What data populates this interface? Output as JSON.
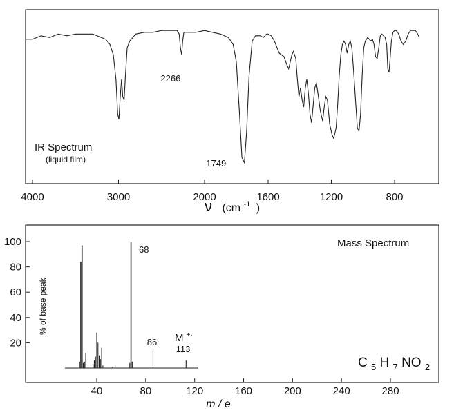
{
  "chart_data": [
    {
      "type": "line",
      "title": "IR Spectrum",
      "subtitle": "(liquid film)",
      "xlabel_symbol": "ν",
      "xlabel_unit": "(cm",
      "xlabel_exp": "-1",
      "xlabel_close": ")",
      "xlim": [
        4100,
        640
      ],
      "x_ticks": [
        4000,
        3000,
        2000,
        1600,
        1200,
        800
      ],
      "x_tick_labels": [
        "4000",
        "3000",
        "2000",
        "1600",
        "1200",
        "800"
      ],
      "grid": false,
      "annotations": [
        {
          "x": 2266,
          "label": "2266"
        },
        {
          "x": 1749,
          "label": "1749"
        }
      ],
      "series": [
        {
          "units": "relative transmittance (0 = bottom of frame, 1 = top)",
          "points": [
            [
              4100,
              0.83
            ],
            [
              4000,
              0.83
            ],
            [
              3900,
              0.85
            ],
            [
              3800,
              0.84
            ],
            [
              3700,
              0.86
            ],
            [
              3600,
              0.85
            ],
            [
              3500,
              0.86
            ],
            [
              3400,
              0.86
            ],
            [
              3300,
              0.86
            ],
            [
              3200,
              0.84
            ],
            [
              3150,
              0.83
            ],
            [
              3100,
              0.8
            ],
            [
              3060,
              0.74
            ],
            [
              3030,
              0.6
            ],
            [
              3010,
              0.4
            ],
            [
              2995,
              0.37
            ],
            [
              2980,
              0.5
            ],
            [
              2965,
              0.6
            ],
            [
              2950,
              0.5
            ],
            [
              2935,
              0.48
            ],
            [
              2920,
              0.62
            ],
            [
              2900,
              0.78
            ],
            [
              2870,
              0.82
            ],
            [
              2800,
              0.86
            ],
            [
              2700,
              0.87
            ],
            [
              2600,
              0.87
            ],
            [
              2500,
              0.88
            ],
            [
              2400,
              0.88
            ],
            [
              2320,
              0.88
            ],
            [
              2295,
              0.86
            ],
            [
              2280,
              0.78
            ],
            [
              2266,
              0.74
            ],
            [
              2255,
              0.82
            ],
            [
              2240,
              0.87
            ],
            [
              2100,
              0.87
            ],
            [
              2000,
              0.88
            ],
            [
              1950,
              0.87
            ],
            [
              1900,
              0.86
            ],
            [
              1850,
              0.84
            ],
            [
              1820,
              0.8
            ],
            [
              1800,
              0.7
            ],
            [
              1780,
              0.4
            ],
            [
              1765,
              0.15
            ],
            [
              1749,
              0.12
            ],
            [
              1735,
              0.3
            ],
            [
              1720,
              0.62
            ],
            [
              1700,
              0.82
            ],
            [
              1680,
              0.85
            ],
            [
              1650,
              0.85
            ],
            [
              1630,
              0.84
            ],
            [
              1610,
              0.86
            ],
            [
              1600,
              0.86
            ],
            [
              1580,
              0.85
            ],
            [
              1560,
              0.82
            ],
            [
              1530,
              0.75
            ],
            [
              1500,
              0.73
            ],
            [
              1480,
              0.68
            ],
            [
              1470,
              0.66
            ],
            [
              1460,
              0.7
            ],
            [
              1450,
              0.74
            ],
            [
              1440,
              0.76
            ],
            [
              1425,
              0.72
            ],
            [
              1415,
              0.6
            ],
            [
              1405,
              0.5
            ],
            [
              1395,
              0.55
            ],
            [
              1385,
              0.48
            ],
            [
              1375,
              0.44
            ],
            [
              1365,
              0.55
            ],
            [
              1355,
              0.6
            ],
            [
              1345,
              0.52
            ],
            [
              1335,
              0.4
            ],
            [
              1325,
              0.35
            ],
            [
              1315,
              0.45
            ],
            [
              1305,
              0.55
            ],
            [
              1295,
              0.58
            ],
            [
              1285,
              0.52
            ],
            [
              1270,
              0.42
            ],
            [
              1255,
              0.36
            ],
            [
              1245,
              0.44
            ],
            [
              1235,
              0.5
            ],
            [
              1225,
              0.48
            ],
            [
              1210,
              0.34
            ],
            [
              1195,
              0.28
            ],
            [
              1185,
              0.26
            ],
            [
              1170,
              0.32
            ],
            [
              1160,
              0.45
            ],
            [
              1150,
              0.62
            ],
            [
              1140,
              0.74
            ],
            [
              1130,
              0.8
            ],
            [
              1120,
              0.82
            ],
            [
              1110,
              0.8
            ],
            [
              1100,
              0.75
            ],
            [
              1090,
              0.8
            ],
            [
              1080,
              0.82
            ],
            [
              1070,
              0.78
            ],
            [
              1060,
              0.66
            ],
            [
              1045,
              0.45
            ],
            [
              1035,
              0.32
            ],
            [
              1025,
              0.3
            ],
            [
              1015,
              0.4
            ],
            [
              1005,
              0.62
            ],
            [
              995,
              0.78
            ],
            [
              985,
              0.82
            ],
            [
              970,
              0.84
            ],
            [
              960,
              0.83
            ],
            [
              950,
              0.82
            ],
            [
              940,
              0.83
            ],
            [
              930,
              0.8
            ],
            [
              920,
              0.73
            ],
            [
              910,
              0.72
            ],
            [
              900,
              0.78
            ],
            [
              890,
              0.85
            ],
            [
              880,
              0.86
            ],
            [
              870,
              0.85
            ],
            [
              860,
              0.84
            ],
            [
              850,
              0.8
            ],
            [
              843,
              0.66
            ],
            [
              835,
              0.64
            ],
            [
              828,
              0.72
            ],
            [
              820,
              0.82
            ],
            [
              810,
              0.87
            ],
            [
              800,
              0.88
            ],
            [
              790,
              0.88
            ],
            [
              780,
              0.87
            ],
            [
              770,
              0.85
            ],
            [
              760,
              0.82
            ],
            [
              745,
              0.8
            ],
            [
              730,
              0.82
            ],
            [
              715,
              0.86
            ],
            [
              700,
              0.88
            ],
            [
              690,
              0.88
            ],
            [
              670,
              0.88
            ],
            [
              655,
              0.86
            ],
            [
              645,
              0.84
            ]
          ]
        }
      ]
    },
    {
      "type": "bar",
      "title": "Mass Spectrum",
      "ylabel": "% of base peak",
      "xlabel": "m / e",
      "xlim": [
        0,
        310
      ],
      "ylim": [
        0,
        110
      ],
      "x_ticks": [
        40,
        80,
        120,
        160,
        200,
        240,
        280
      ],
      "x_tick_labels": [
        "40",
        "80",
        "120",
        "160",
        "200",
        "240",
        "280"
      ],
      "y_ticks": [
        20,
        40,
        60,
        80,
        100
      ],
      "y_tick_labels": [
        "20",
        "40",
        "60",
        "80",
        "100"
      ],
      "formula": {
        "c": "C",
        "c_sub": "5",
        "h": "H",
        "h_sub": "7",
        "rest": "NO",
        "rest_sub": "2"
      },
      "molecular_ion_label": "M",
      "molecular_ion_charge": "+·",
      "annotations": [
        {
          "x": 68,
          "label": "68"
        },
        {
          "x": 86,
          "label": "86"
        },
        {
          "x": 113,
          "label": "113"
        }
      ],
      "peaks": [
        [
          26,
          5
        ],
        [
          27,
          84
        ],
        [
          28,
          97
        ],
        [
          29,
          4
        ],
        [
          30,
          5
        ],
        [
          31,
          12
        ],
        [
          37,
          3
        ],
        [
          38,
          6
        ],
        [
          39,
          9
        ],
        [
          40,
          28
        ],
        [
          41,
          20
        ],
        [
          42,
          10
        ],
        [
          43,
          7
        ],
        [
          44,
          16
        ],
        [
          45,
          2
        ],
        [
          53,
          1
        ],
        [
          55,
          2
        ],
        [
          67,
          4
        ],
        [
          68,
          100
        ],
        [
          69,
          5
        ],
        [
          86,
          15
        ],
        [
          113,
          6
        ]
      ]
    }
  ]
}
